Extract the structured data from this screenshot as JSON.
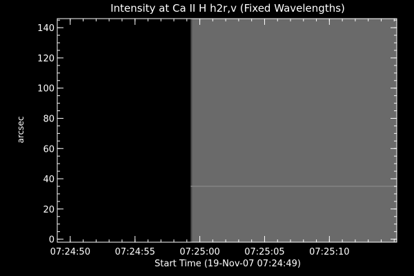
{
  "colors": {
    "background": "#000000",
    "foreground": "#ffffff",
    "data_gray": "#6a6a6a",
    "data_band": "#7d7d7d"
  },
  "chart_data": {
    "type": "heatmap",
    "title": "Intensity at Ca II H h2r,v (Fixed Wavelengths)",
    "xlabel": "Start Time (19-Nov-07 07:24:49)",
    "ylabel": "arcsec",
    "x_unit": "seconds since 07:24:49",
    "xlim": [
      0.0,
      26.2
    ],
    "ylim": [
      -2,
      146
    ],
    "x_ticks": [
      {
        "value": 1,
        "label": "07:24:50"
      },
      {
        "value": 6,
        "label": "07:24:55"
      },
      {
        "value": 11,
        "label": "07:25:00"
      },
      {
        "value": 16,
        "label": "07:25:05"
      },
      {
        "value": 21,
        "label": "07:25:10"
      }
    ],
    "x_minor_step": 1,
    "y_ticks": [
      0,
      20,
      40,
      60,
      80,
      100,
      120,
      140
    ],
    "y_minor_step": 5,
    "data_start_x": 10.3,
    "bright_band_y": 35,
    "grid": false,
    "colormap": "grayscale"
  }
}
